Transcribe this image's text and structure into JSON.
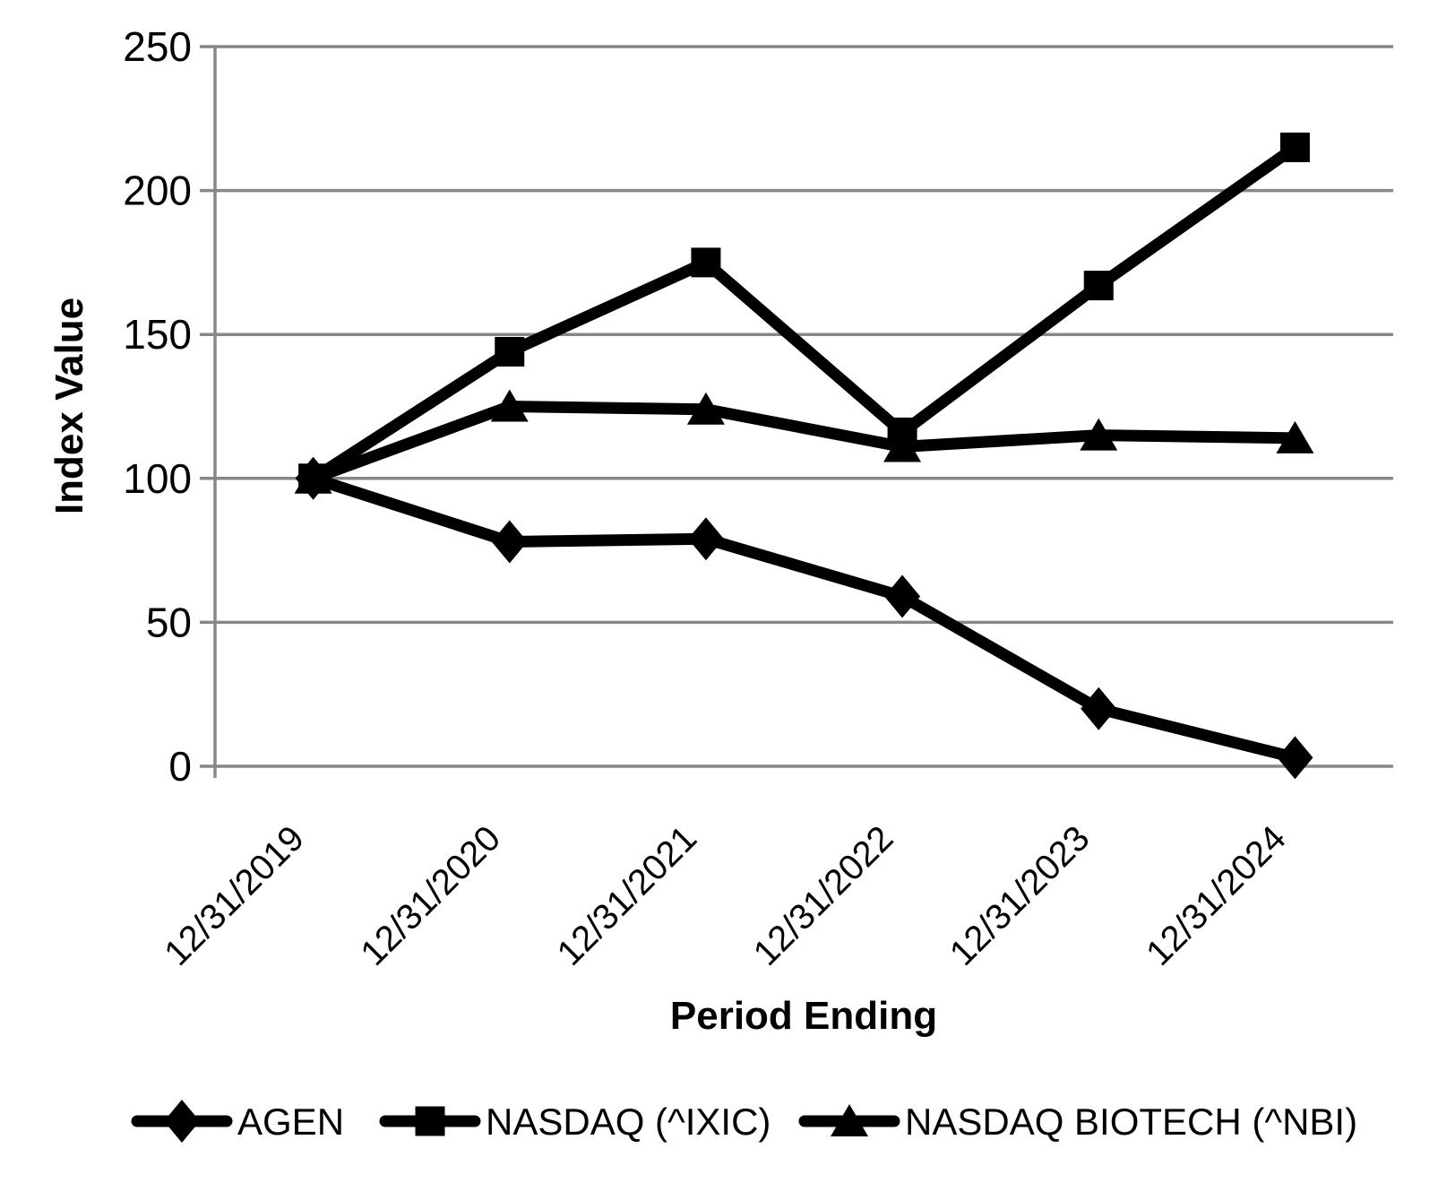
{
  "page": {
    "background": "#ffffff"
  },
  "chart_data": {
    "type": "line",
    "title": "",
    "categories": [
      "12/31/2019",
      "12/31/2020",
      "12/31/2021",
      "12/31/2022",
      "12/31/2023",
      "12/31/2024"
    ],
    "xlabel": "Period Ending",
    "ylabel": "Index Value",
    "ylim": [
      0,
      250
    ],
    "yticks": [
      0,
      50,
      100,
      150,
      200,
      250
    ],
    "grid": true,
    "legend_position": "bottom",
    "series": [
      {
        "name": "AGEN",
        "marker": "diamond",
        "color": "#000000",
        "values": [
          100,
          78,
          79,
          59,
          20,
          3
        ]
      },
      {
        "name": "NASDAQ (^IXIC)",
        "marker": "square",
        "color": "#000000",
        "values": [
          100,
          144,
          175,
          116,
          167,
          215
        ]
      },
      {
        "name": "NASDAQ BIOTECH (^NBI)",
        "marker": "triangle",
        "color": "#000000",
        "values": [
          100,
          125,
          124,
          111,
          115,
          114
        ]
      }
    ],
    "gridline_color": "#878787",
    "axis_color": "#878787",
    "text_color": "#000000",
    "series_line_width": 13
  }
}
